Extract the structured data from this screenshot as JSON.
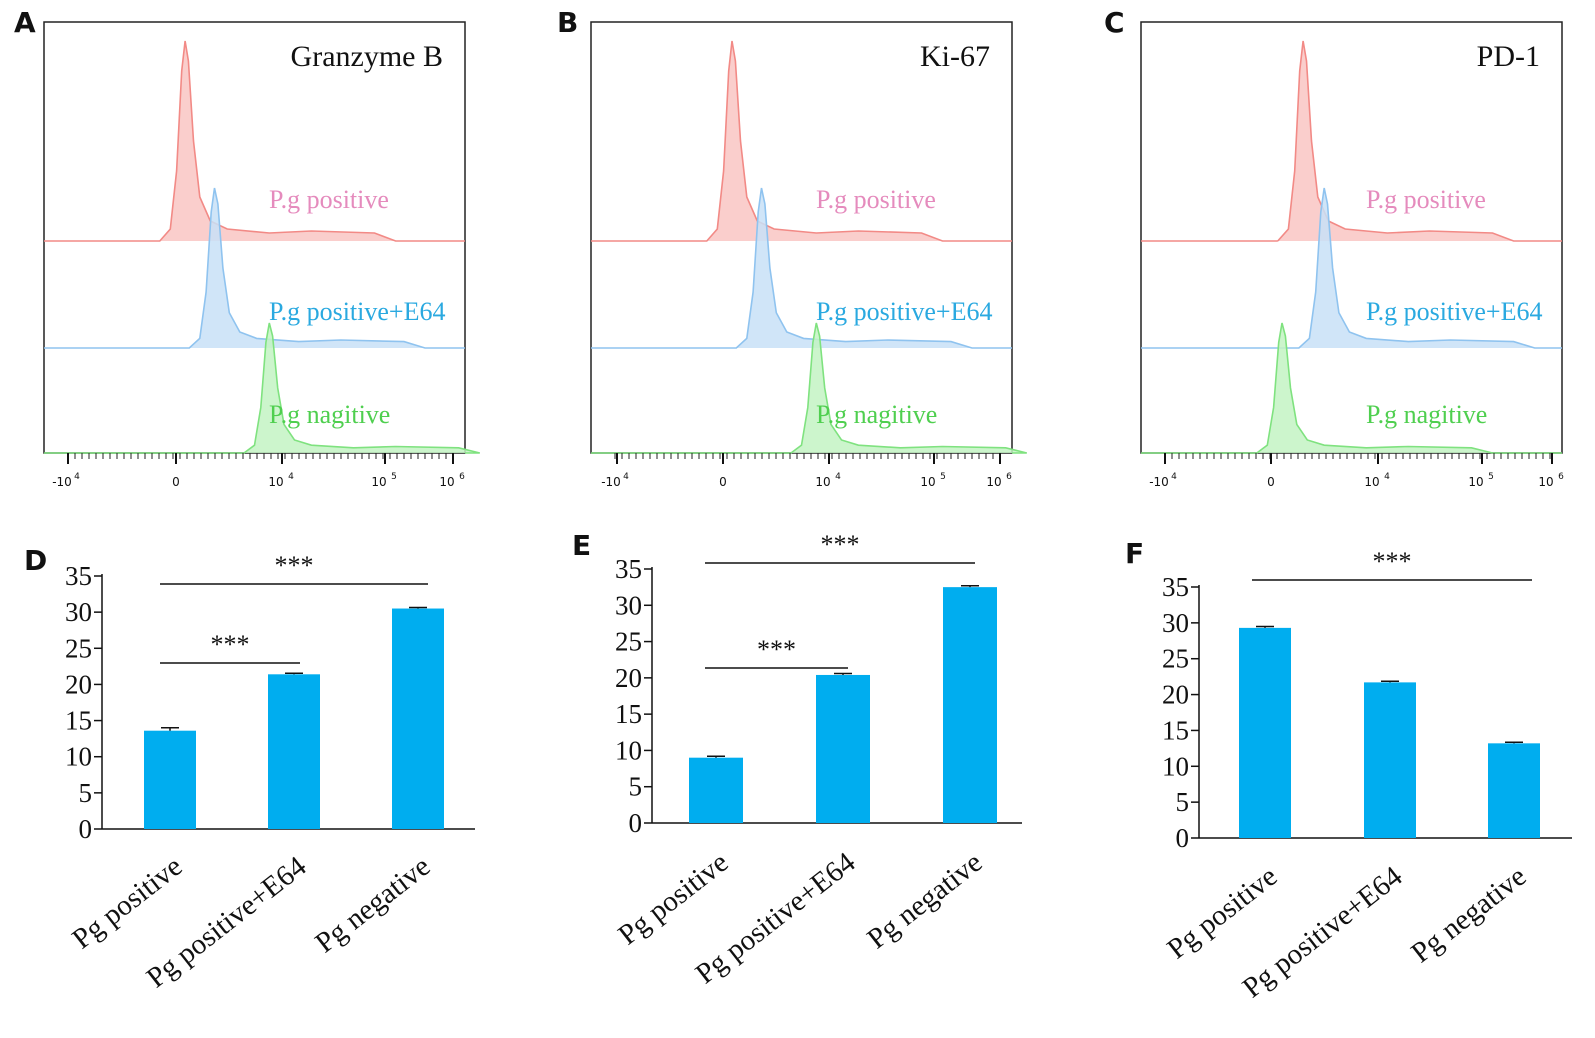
{
  "colors": {
    "positive": "#f28a86",
    "positive_fill": "#f9c6c3",
    "e64": "#8fc3ef",
    "e64_fill": "#c8e0f7",
    "negative": "#7fe27f",
    "negative_fill": "#c3f3c3",
    "positive_text": "#e58bbd",
    "e64_text": "#2aa9e0",
    "negative_text": "#4fcf4f",
    "bar": "#00adef"
  },
  "chart_data": [
    {
      "panel": "A",
      "type": "area",
      "title": "Granzyme B",
      "xticks": [
        "-10",
        "0",
        "10",
        "10",
        "10"
      ],
      "xtick_exponents": [
        "4",
        "",
        "4",
        "5",
        "6"
      ],
      "series": [
        {
          "name": "P.g positive",
          "peak_x": 0.05
        },
        {
          "name": "P.g positive+E64",
          "peak_x": 0.12
        },
        {
          "name": "P.g nagitive",
          "peak_x": 0.25
        }
      ]
    },
    {
      "panel": "B",
      "type": "area",
      "title": "Ki-67",
      "xticks": [
        "-10",
        "0",
        "10",
        "10",
        "10"
      ],
      "xtick_exponents": [
        "4",
        "",
        "4",
        "5",
        "6"
      ],
      "series": [
        {
          "name": "P.g positive",
          "peak_x": 0.05
        },
        {
          "name": "P.g positive+E64",
          "peak_x": 0.12
        },
        {
          "name": "P.g nagitive",
          "peak_x": 0.25
        }
      ]
    },
    {
      "panel": "C",
      "type": "area",
      "title": "PD-1",
      "xticks": [
        "-10",
        "0",
        "10",
        "10",
        "10"
      ],
      "xtick_exponents": [
        "4",
        "",
        "4",
        "5",
        "6"
      ],
      "series": [
        {
          "name": "P.g positive",
          "peak_x": 0.1
        },
        {
          "name": "P.g positive+E64",
          "peak_x": 0.15
        },
        {
          "name": "P.g nagitive",
          "peak_x": 0.05
        }
      ]
    },
    {
      "panel": "D",
      "type": "bar",
      "categories": [
        "Pg positive",
        "Pg positive+E64",
        "Pg negative"
      ],
      "values": [
        13.6,
        21.4,
        30.5
      ],
      "errors": [
        0.4,
        0.15,
        0.15
      ],
      "ylim": [
        0,
        35
      ],
      "yticks": [
        0,
        5,
        10,
        15,
        20,
        25,
        30,
        35
      ],
      "significance": [
        {
          "from": 0,
          "to": 1,
          "label": "***"
        },
        {
          "from": 0,
          "to": 2,
          "label": "***"
        }
      ]
    },
    {
      "panel": "E",
      "type": "bar",
      "categories": [
        "Pg positive",
        "Pg positive+E64",
        "Pg negative"
      ],
      "values": [
        9.0,
        20.4,
        32.5
      ],
      "errors": [
        0.2,
        0.2,
        0.2
      ],
      "ylim": [
        0,
        35
      ],
      "yticks": [
        0,
        5,
        10,
        15,
        20,
        25,
        30,
        35
      ],
      "significance": [
        {
          "from": 0,
          "to": 1,
          "label": "***"
        },
        {
          "from": 0,
          "to": 2,
          "label": "***"
        }
      ]
    },
    {
      "panel": "F",
      "type": "bar",
      "categories": [
        "Pg positive",
        "Pg positive+E64",
        "Pg negative"
      ],
      "values": [
        29.3,
        21.7,
        13.2
      ],
      "errors": [
        0.2,
        0.15,
        0.15
      ],
      "ylim": [
        0,
        35
      ],
      "yticks": [
        0,
        5,
        10,
        15,
        20,
        25,
        30,
        35
      ],
      "significance": [
        {
          "from": 0,
          "to": 2,
          "label": "***"
        }
      ]
    }
  ]
}
